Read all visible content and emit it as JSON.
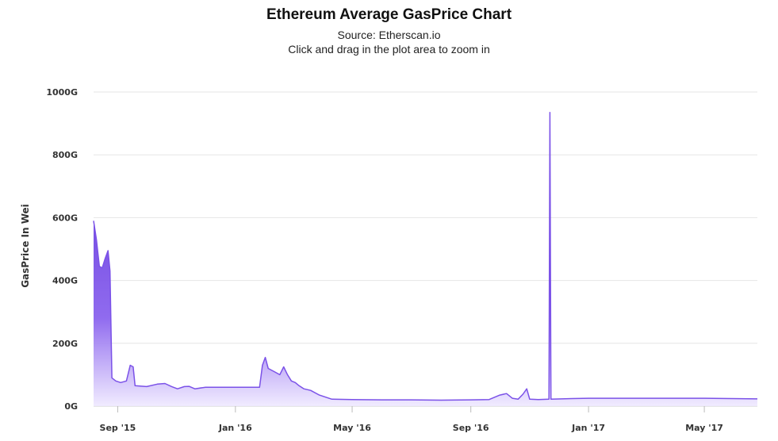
{
  "chart_data": {
    "type": "area",
    "title": "Ethereum Average GasPrice Chart",
    "subtitle": "Source: Etherscan.io",
    "subtitle2": "Click and drag in the plot area to zoom in",
    "ylabel": "GasPrice In Wei",
    "xlabel": "",
    "ylim": [
      0,
      1000
    ],
    "yticks": [
      {
        "value": 0,
        "label": "0G"
      },
      {
        "value": 200,
        "label": "200G"
      },
      {
        "value": 400,
        "label": "400G"
      },
      {
        "value": 600,
        "label": "600G"
      },
      {
        "value": 800,
        "label": "800G"
      },
      {
        "value": 1000,
        "label": "1000G"
      }
    ],
    "xlim": [
      "2015-08-07",
      "2017-06-25"
    ],
    "xticks": [
      {
        "date": "2015-09-01",
        "label": "Sep '15"
      },
      {
        "date": "2016-01-01",
        "label": "Jan '16"
      },
      {
        "date": "2016-05-01",
        "label": "May '16"
      },
      {
        "date": "2016-09-01",
        "label": "Sep '16"
      },
      {
        "date": "2017-01-01",
        "label": "Jan '17"
      },
      {
        "date": "2017-05-01",
        "label": "May '17"
      }
    ],
    "grid": true,
    "series": [
      {
        "color": "#7b52e8",
        "points": [
          [
            "2015-08-07",
            590
          ],
          [
            "2015-08-10",
            530
          ],
          [
            "2015-08-13",
            445
          ],
          [
            "2015-08-16",
            440
          ],
          [
            "2015-08-19",
            470
          ],
          [
            "2015-08-22",
            495
          ],
          [
            "2015-08-24",
            430
          ],
          [
            "2015-08-26",
            90
          ],
          [
            "2015-08-30",
            80
          ],
          [
            "2015-09-04",
            75
          ],
          [
            "2015-09-10",
            80
          ],
          [
            "2015-09-14",
            130
          ],
          [
            "2015-09-17",
            125
          ],
          [
            "2015-09-19",
            65
          ],
          [
            "2015-10-01",
            62
          ],
          [
            "2015-10-12",
            70
          ],
          [
            "2015-10-20",
            72
          ],
          [
            "2015-10-27",
            62
          ],
          [
            "2015-11-02",
            55
          ],
          [
            "2015-11-09",
            62
          ],
          [
            "2015-11-14",
            63
          ],
          [
            "2015-11-20",
            55
          ],
          [
            "2015-12-01",
            60
          ],
          [
            "2015-12-15",
            60
          ],
          [
            "2016-01-01",
            60
          ],
          [
            "2016-01-15",
            60
          ],
          [
            "2016-01-26",
            60
          ],
          [
            "2016-01-29",
            130
          ],
          [
            "2016-02-01",
            155
          ],
          [
            "2016-02-04",
            120
          ],
          [
            "2016-02-10",
            110
          ],
          [
            "2016-02-16",
            100
          ],
          [
            "2016-02-20",
            125
          ],
          [
            "2016-02-24",
            100
          ],
          [
            "2016-02-28",
            80
          ],
          [
            "2016-03-03",
            75
          ],
          [
            "2016-03-07",
            65
          ],
          [
            "2016-03-12",
            55
          ],
          [
            "2016-03-19",
            50
          ],
          [
            "2016-03-28",
            35
          ],
          [
            "2016-04-10",
            22
          ],
          [
            "2016-05-01",
            21
          ],
          [
            "2016-06-01",
            20
          ],
          [
            "2016-07-01",
            20
          ],
          [
            "2016-08-01",
            19
          ],
          [
            "2016-09-01",
            20
          ],
          [
            "2016-09-20",
            21
          ],
          [
            "2016-10-01",
            35
          ],
          [
            "2016-10-08",
            40
          ],
          [
            "2016-10-14",
            25
          ],
          [
            "2016-10-20",
            22
          ],
          [
            "2016-10-25",
            38
          ],
          [
            "2016-10-29",
            55
          ],
          [
            "2016-11-01",
            22
          ],
          [
            "2016-11-10",
            21
          ],
          [
            "2016-11-21",
            22
          ],
          [
            "2016-11-22",
            935
          ],
          [
            "2016-11-23",
            22
          ],
          [
            "2016-12-15",
            24
          ],
          [
            "2017-01-01",
            25
          ],
          [
            "2017-02-01",
            25
          ],
          [
            "2017-03-01",
            25
          ],
          [
            "2017-04-01",
            25
          ],
          [
            "2017-05-01",
            25
          ],
          [
            "2017-06-25",
            23
          ]
        ]
      }
    ]
  }
}
